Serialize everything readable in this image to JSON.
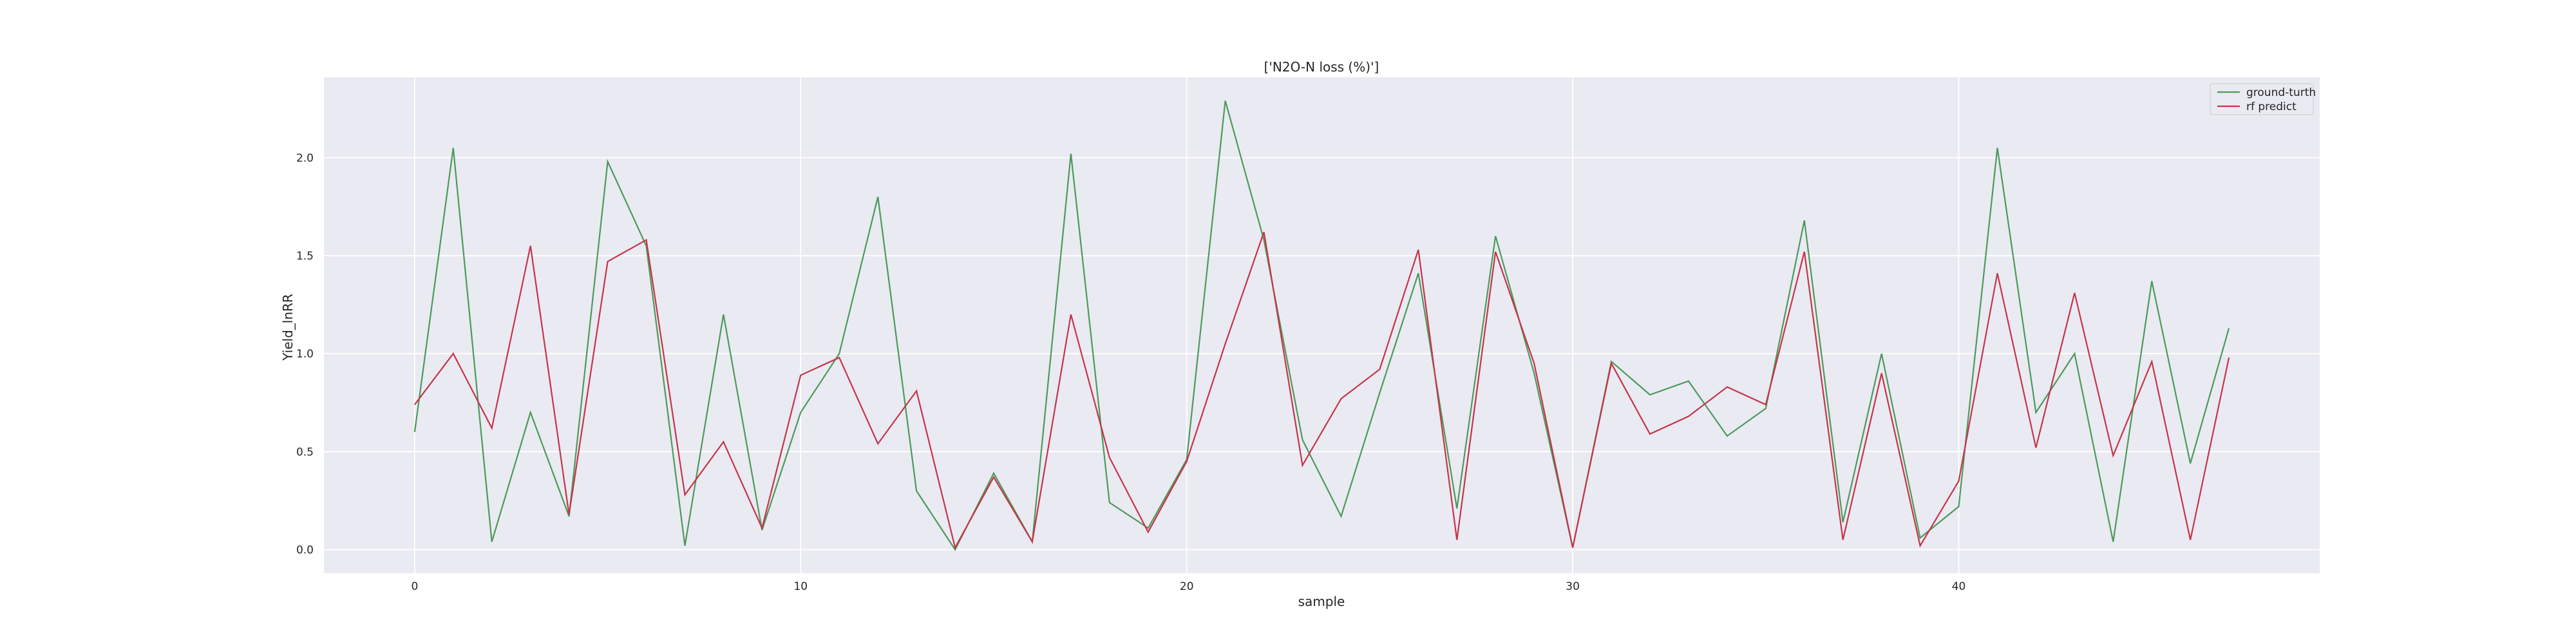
{
  "chart_data": {
    "type": "line",
    "title": "['N2O-N loss (%)']",
    "xlabel": "sample",
    "ylabel": "Yield_lnRR",
    "xlim": [
      -2.35,
      49.35
    ],
    "ylim": [
      -0.12,
      2.41
    ],
    "x_ticks": [
      0,
      10,
      20,
      30,
      40
    ],
    "y_ticks": [
      0.0,
      0.5,
      1.0,
      1.5,
      2.0
    ],
    "x_tick_labels": [
      "0",
      "10",
      "20",
      "30",
      "40"
    ],
    "y_tick_labels": [
      "0.0",
      "0.5",
      "1.0",
      "1.5",
      "2.0"
    ],
    "grid": true,
    "legend_position": "top-right",
    "x": [
      0,
      1,
      2,
      3,
      4,
      5,
      6,
      7,
      8,
      9,
      10,
      11,
      12,
      13,
      14,
      15,
      16,
      17,
      18,
      19,
      20,
      21,
      22,
      23,
      24,
      25,
      26,
      27,
      28,
      29,
      30,
      31,
      32,
      33,
      34,
      35,
      36,
      37,
      38,
      39,
      40,
      41,
      42,
      43,
      44,
      45,
      46,
      47
    ],
    "series": [
      {
        "name": "ground-turth",
        "color": "#4c9a5c",
        "values": [
          0.6,
          2.05,
          0.04,
          0.7,
          0.17,
          1.98,
          1.55,
          0.02,
          1.2,
          0.1,
          0.7,
          1.0,
          1.8,
          0.3,
          0.0,
          0.39,
          0.04,
          2.02,
          0.24,
          0.11,
          0.46,
          2.29,
          1.58,
          0.56,
          0.17,
          0.8,
          1.41,
          0.21,
          1.6,
          0.9,
          0.01,
          0.96,
          0.79,
          0.86,
          0.58,
          0.72,
          1.68,
          0.14,
          1.0,
          0.06,
          0.22,
          2.05,
          0.7,
          1.0,
          0.04,
          1.37,
          0.44,
          1.13
        ]
      },
      {
        "name": "rf predict",
        "color": "#c5354a",
        "values": [
          0.74,
          1.0,
          0.62,
          1.55,
          0.18,
          1.47,
          1.58,
          0.28,
          0.55,
          0.11,
          0.89,
          0.98,
          0.54,
          0.81,
          0.01,
          0.37,
          0.04,
          1.2,
          0.47,
          0.09,
          0.45,
          1.05,
          1.62,
          0.43,
          0.77,
          0.92,
          1.53,
          0.05,
          1.52,
          0.95,
          0.01,
          0.95,
          0.59,
          0.68,
          0.83,
          0.74,
          1.52,
          0.05,
          0.9,
          0.02,
          0.35,
          1.41,
          0.52,
          1.31,
          0.48,
          0.96,
          0.05,
          0.98
        ]
      }
    ]
  }
}
